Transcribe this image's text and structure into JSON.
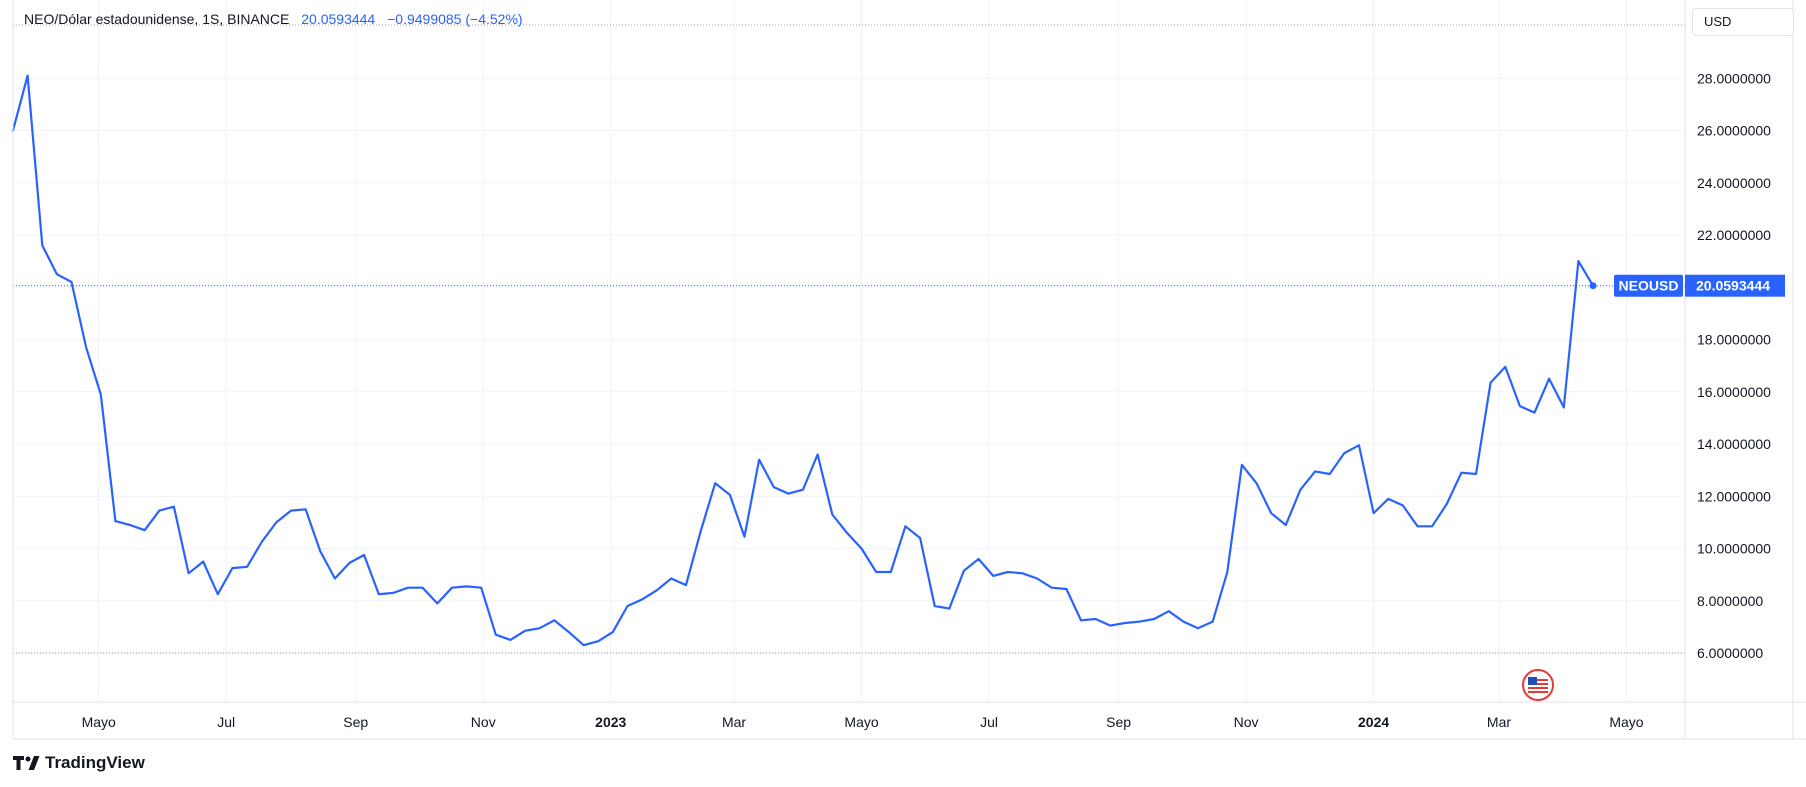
{
  "header": {
    "symbol": "NEO/Dólar estadounidense, 1S, BINANCE",
    "last": "20.0593444",
    "change": "−0.9499085 (−4.52%)"
  },
  "currency": "USD",
  "price_tag": {
    "label": "NEOUSD",
    "value": "20.0593444"
  },
  "footer": {
    "brand": "TradingView"
  },
  "colors": {
    "line": "#2962ff",
    "grid": "#f0f3fa",
    "axis_text": "#131722",
    "tag_bg": "#2962ff"
  },
  "icons": {
    "logo": "tradingview-logo-icon",
    "flag": "us-flag-icon"
  },
  "chart_data": {
    "type": "line",
    "series": [
      {
        "name": "NEOUSD",
        "x": [
          "2022-03-21",
          "2022-03-28",
          "2022-04-04",
          "2022-04-11",
          "2022-04-18",
          "2022-04-25",
          "2022-05-02",
          "2022-05-09",
          "2022-05-16",
          "2022-05-23",
          "2022-05-30",
          "2022-06-06",
          "2022-06-13",
          "2022-06-20",
          "2022-06-27",
          "2022-07-04",
          "2022-07-11",
          "2022-07-18",
          "2022-07-25",
          "2022-08-01",
          "2022-08-08",
          "2022-08-15",
          "2022-08-22",
          "2022-08-29",
          "2022-09-05",
          "2022-09-12",
          "2022-09-19",
          "2022-09-26",
          "2022-10-03",
          "2022-10-10",
          "2022-10-17",
          "2022-10-24",
          "2022-10-31",
          "2022-11-07",
          "2022-11-14",
          "2022-11-21",
          "2022-11-28",
          "2022-12-05",
          "2022-12-12",
          "2022-12-19",
          "2022-12-26",
          "2023-01-02",
          "2023-01-09",
          "2023-01-16",
          "2023-01-23",
          "2023-01-30",
          "2023-02-06",
          "2023-02-13",
          "2023-02-20",
          "2023-02-27",
          "2023-03-06",
          "2023-03-13",
          "2023-03-20",
          "2023-03-27",
          "2023-04-03",
          "2023-04-10",
          "2023-04-17",
          "2023-04-24",
          "2023-05-01",
          "2023-05-08",
          "2023-05-15",
          "2023-05-22",
          "2023-05-29",
          "2023-06-05",
          "2023-06-12",
          "2023-06-19",
          "2023-06-26",
          "2023-07-03",
          "2023-07-10",
          "2023-07-17",
          "2023-07-24",
          "2023-07-31",
          "2023-08-07",
          "2023-08-14",
          "2023-08-21",
          "2023-08-28",
          "2023-09-04",
          "2023-09-11",
          "2023-09-18",
          "2023-09-25",
          "2023-10-02",
          "2023-10-09",
          "2023-10-16",
          "2023-10-23",
          "2023-10-30",
          "2023-11-06",
          "2023-11-13",
          "2023-11-20",
          "2023-11-27",
          "2023-12-04",
          "2023-12-11",
          "2023-12-18",
          "2023-12-25",
          "2024-01-01",
          "2024-01-08",
          "2024-01-15",
          "2024-01-22",
          "2024-01-29",
          "2024-02-05",
          "2024-02-12",
          "2024-02-19",
          "2024-02-26",
          "2024-03-04",
          "2024-03-11",
          "2024-03-18",
          "2024-03-25",
          "2024-04-01",
          "2024-04-08",
          "2024-04-15"
        ],
        "values": [
          26.0,
          28.1,
          21.6,
          20.5,
          20.2,
          17.7,
          15.9,
          11.05,
          10.9,
          10.7,
          11.45,
          11.6,
          9.05,
          9.5,
          8.25,
          9.25,
          9.3,
          10.25,
          11.0,
          11.45,
          11.5,
          9.9,
          8.85,
          9.45,
          9.75,
          8.25,
          8.3,
          8.5,
          8.5,
          7.9,
          8.5,
          8.55,
          8.5,
          6.7,
          6.5,
          6.85,
          6.95,
          7.25,
          6.8,
          6.3,
          6.45,
          6.8,
          7.8,
          8.05,
          8.4,
          8.85,
          8.6,
          10.65,
          12.5,
          12.05,
          10.45,
          13.4,
          12.35,
          12.1,
          12.25,
          13.6,
          11.3,
          10.6,
          10.0,
          9.1,
          9.1,
          10.85,
          10.4,
          7.8,
          7.7,
          9.15,
          9.6,
          8.95,
          9.1,
          9.05,
          8.85,
          8.5,
          8.45,
          7.25,
          7.3,
          7.05,
          7.15,
          7.2,
          7.3,
          7.6,
          7.2,
          6.95,
          7.2,
          9.1,
          13.2,
          12.5,
          11.35,
          10.9,
          12.25,
          12.95,
          12.85,
          13.65,
          13.95,
          11.35,
          11.9,
          11.65,
          10.85,
          10.85,
          11.7,
          12.9,
          12.85,
          16.35,
          16.95,
          15.45,
          15.2,
          16.5,
          15.4,
          21.0,
          20.0593444
        ]
      }
    ],
    "y_ticks": [
      "6.0000000",
      "8.0000000",
      "10.0000000",
      "12.0000000",
      "14.0000000",
      "16.0000000",
      "18.0000000",
      "20.0000000",
      "22.0000000",
      "24.0000000",
      "26.0000000",
      "28.0000000"
    ],
    "x_ticks": [
      {
        "label": "Mayo",
        "date": "2022-05-01",
        "bold": false
      },
      {
        "label": "Jul",
        "date": "2022-07-01",
        "bold": false
      },
      {
        "label": "Sep",
        "date": "2022-09-01",
        "bold": false
      },
      {
        "label": "Nov",
        "date": "2022-11-01",
        "bold": false
      },
      {
        "label": "2023",
        "date": "2023-01-01",
        "bold": true
      },
      {
        "label": "Mar",
        "date": "2023-03-01",
        "bold": false
      },
      {
        "label": "Mayo",
        "date": "2023-05-01",
        "bold": false
      },
      {
        "label": "Jul",
        "date": "2023-07-01",
        "bold": false
      },
      {
        "label": "Sep",
        "date": "2023-09-01",
        "bold": false
      },
      {
        "label": "Nov",
        "date": "2023-11-01",
        "bold": false
      },
      {
        "label": "2024",
        "date": "2024-01-01",
        "bold": true
      },
      {
        "label": "Mar",
        "date": "2024-03-01",
        "bold": false
      },
      {
        "label": "Mayo",
        "date": "2024-05-01",
        "bold": false
      }
    ],
    "grid": true
  }
}
